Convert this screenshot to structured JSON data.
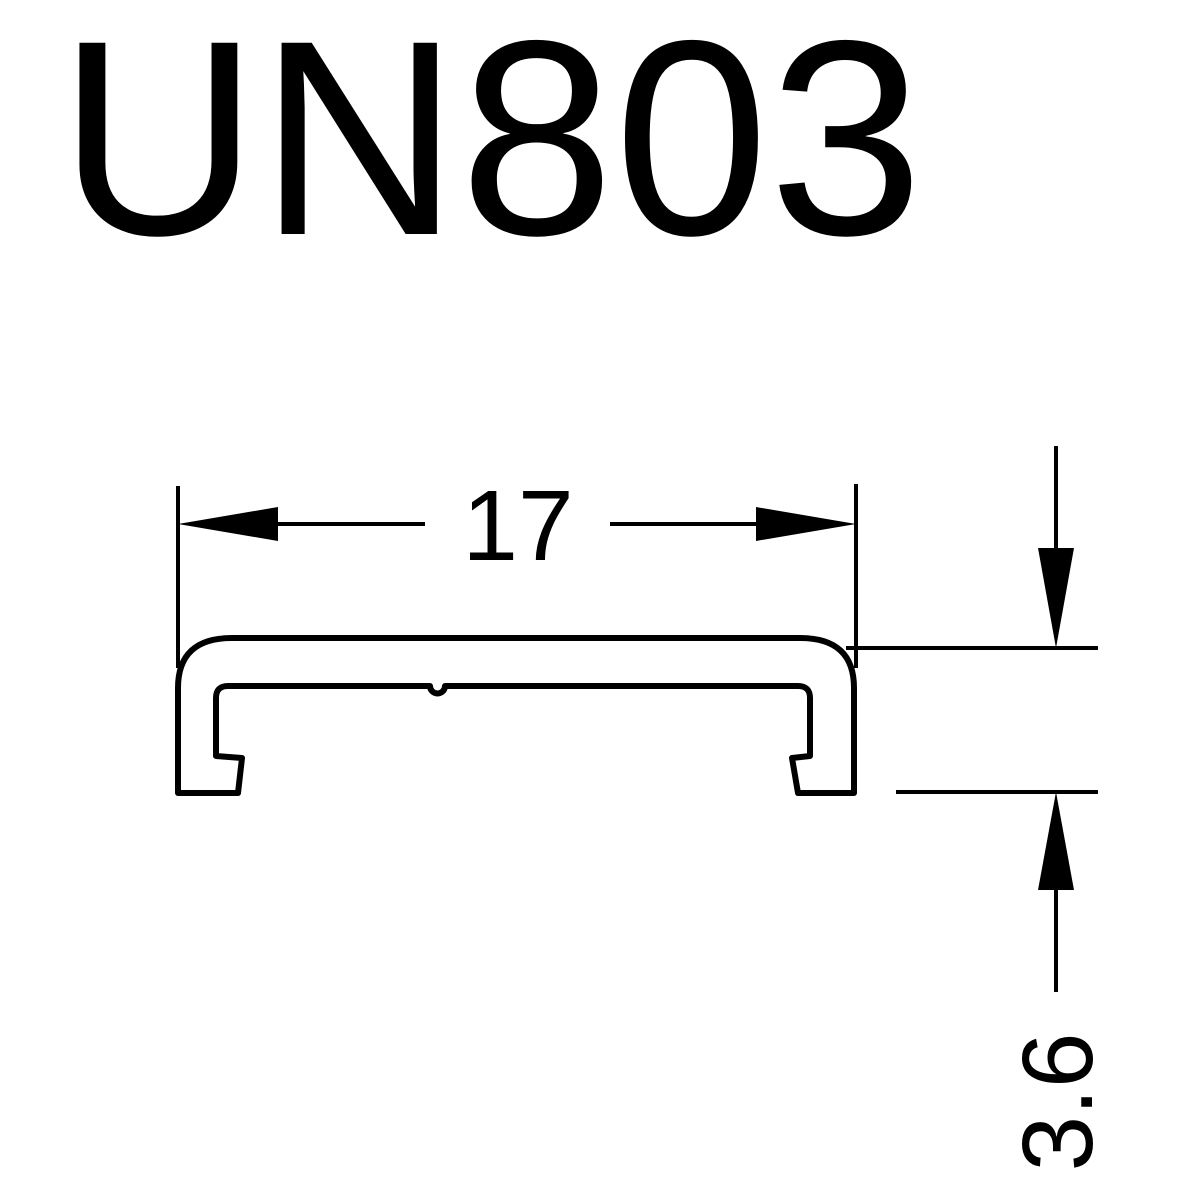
{
  "drawing": {
    "title": "UN803",
    "dimensions": {
      "width": "17",
      "height": "3.6"
    }
  }
}
